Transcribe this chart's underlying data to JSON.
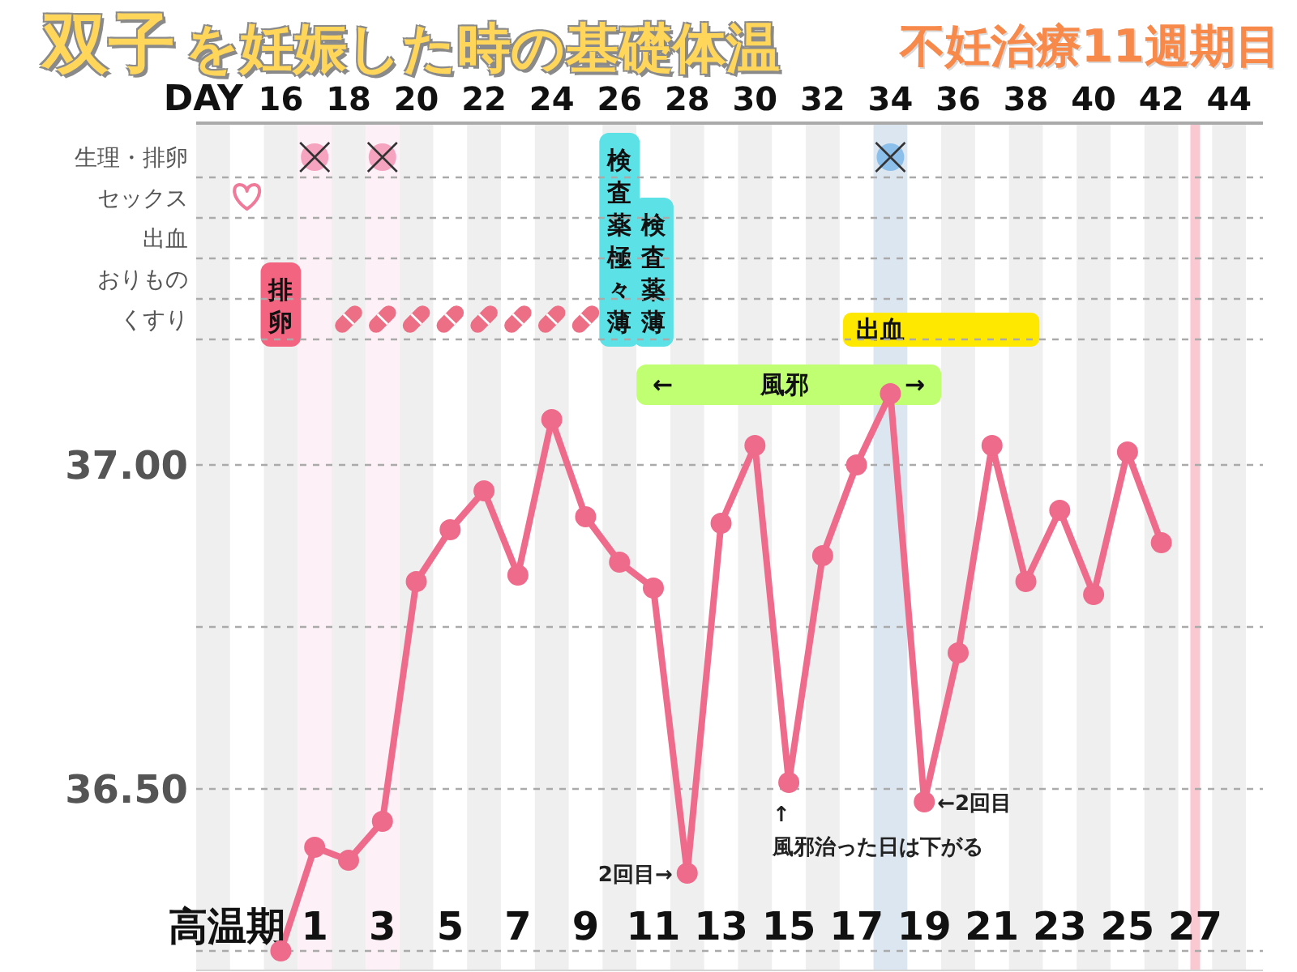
{
  "chart_data": [
    {
      "type": "scatter",
      "orientation": "horizontal",
      "title": "双子を妊娠した時の基礎体温",
      "subtitle": "不妊治療11週期目",
      "xlabel": "DAY",
      "xlim": [
        13.5,
        45
      ],
      "xticks": [
        16,
        18,
        20,
        22,
        24,
        26,
        28,
        30,
        32,
        34,
        36,
        38,
        40,
        42,
        44
      ],
      "categories": [
        "生理・排卵",
        "セックス",
        "出血",
        "おりもの",
        "くすり"
      ],
      "grid": "y",
      "series": [
        {
          "x": [
            "生理・排卵",
            "生理・排卵"
          ],
          "values": [
            17,
            19
          ],
          "color": "#f5a3bf",
          "marker": "circle"
        },
        {
          "x": [
            "生理・排卵"
          ],
          "values": [
            34
          ],
          "color": "#8cbfea",
          "marker": "circle"
        },
        {
          "x": [
            "生理・排卵",
            "生理・排卵",
            "生理・排卵"
          ],
          "values": [
            17,
            19,
            34
          ],
          "color": "#333333",
          "marker": "cross"
        },
        {
          "x": [
            "セックス"
          ],
          "values": [
            15
          ],
          "color": "#f07a9a"
        },
        {
          "x": [
            "くすり",
            "くすり",
            "くすり",
            "くすり",
            "くすり",
            "くすり",
            "くすり",
            "くすり"
          ],
          "values": [
            18,
            19,
            20,
            21,
            22,
            23,
            24,
            25
          ],
          "color": "#ec6f85"
        }
      ],
      "bands": [
        {
          "axis": "x",
          "from": 13.5,
          "to": 14.5,
          "color": "#efefef"
        },
        {
          "axis": "x",
          "from": 15.5,
          "to": 16.5,
          "color": "#efefef"
        },
        {
          "axis": "x",
          "from": 17.5,
          "to": 18.5,
          "color": "#efefef"
        },
        {
          "axis": "x",
          "from": 19.5,
          "to": 20.5,
          "color": "#efefef"
        },
        {
          "axis": "x",
          "from": 21.5,
          "to": 22.5,
          "color": "#efefef"
        },
        {
          "axis": "x",
          "from": 23.5,
          "to": 24.5,
          "color": "#efefef"
        },
        {
          "axis": "x",
          "from": 25.5,
          "to": 26.5,
          "color": "#efefef"
        },
        {
          "axis": "x",
          "from": 27.5,
          "to": 28.5,
          "color": "#efefef"
        },
        {
          "axis": "x",
          "from": 29.5,
          "to": 30.5,
          "color": "#efefef"
        },
        {
          "axis": "x",
          "from": 31.5,
          "to": 32.5,
          "color": "#efefef"
        },
        {
          "axis": "x",
          "from": 35.5,
          "to": 36.5,
          "color": "#efefef"
        },
        {
          "axis": "x",
          "from": 37.5,
          "to": 38.5,
          "color": "#efefef"
        },
        {
          "axis": "x",
          "from": 39.5,
          "to": 40.5,
          "color": "#efefef"
        },
        {
          "axis": "x",
          "from": 41.5,
          "to": 42.5,
          "color": "#efefef"
        },
        {
          "axis": "x",
          "from": 43.5,
          "to": 44.5,
          "color": "#efefef"
        },
        {
          "axis": "x",
          "from": 16.5,
          "to": 17.5,
          "color": "#fdf0f6"
        },
        {
          "axis": "x",
          "from": 18.5,
          "to": 19.5,
          "color": "#fdf0f6"
        },
        {
          "axis": "x",
          "from": 33.5,
          "to": 34.5,
          "color": "#dce6f0"
        },
        {
          "axis": "x",
          "from": 15.5,
          "to": 16.5,
          "label": "排卵",
          "color": "#f2647f"
        },
        {
          "axis": "x",
          "from": 25.5,
          "to": 26.5,
          "label": "検査薬極々薄",
          "color": "#5ce1e6"
        },
        {
          "axis": "x",
          "from": 26.5,
          "to": 27.5,
          "label": "検査薬薄",
          "color": "#5ce1e6"
        },
        {
          "axis": "x",
          "from": 32.6,
          "to": 38.4,
          "label": "出血",
          "color": "#ffe800"
        }
      ],
      "ref_lines": [
        {
          "axis": "x",
          "value": 43,
          "color": "#f9c8d1"
        }
      ]
    },
    {
      "type": "line",
      "xlabel": "高温期",
      "x": [
        0,
        1,
        2,
        3,
        4,
        5,
        6,
        7,
        8,
        9,
        10,
        11,
        12,
        13,
        14,
        15,
        16,
        17,
        18,
        19,
        20,
        21,
        22,
        23,
        24,
        25,
        26
      ],
      "xlim": [
        -2.5,
        29
      ],
      "xticks": [
        1,
        3,
        5,
        7,
        9,
        11,
        13,
        15,
        17,
        19,
        21,
        23,
        25,
        27
      ],
      "ylim": [
        36.22,
        37.18
      ],
      "yticks": [
        {
          "value": 36.25,
          "label": null
        },
        {
          "value": 36.5,
          "label": "36.50"
        },
        {
          "value": 36.75,
          "label": null
        },
        {
          "value": 37,
          "label": "37.00"
        }
      ],
      "grid": "y",
      "marker": "circle",
      "series": [
        {
          "color": "#ee6b8b",
          "values": [
            36.25,
            36.41,
            36.39,
            36.45,
            36.82,
            36.9,
            36.96,
            36.83,
            37.07,
            36.92,
            36.85,
            36.81,
            36.37,
            36.91,
            37.03,
            36.51,
            36.86,
            37.0,
            37.11,
            36.48,
            36.71,
            37.03,
            36.82,
            36.93,
            36.8,
            37.02,
            36.88
          ]
        }
      ],
      "annotations": [
        {
          "text": "2回目→",
          "x": 12,
          "y": 36.37
        },
        {
          "text": "↑\n風邪治った日は下がる",
          "x": 15,
          "y": 36.51
        },
        {
          "text": "←2回目",
          "x": 19,
          "y": 36.48
        }
      ],
      "bands": [
        {
          "axis": "x",
          "from": -2.5,
          "to": -1.5,
          "color": "#efefef"
        },
        {
          "axis": "x",
          "from": -0.5,
          "to": 0.5,
          "color": "#efefef"
        },
        {
          "axis": "x",
          "from": 1.5,
          "to": 2.5,
          "color": "#efefef"
        },
        {
          "axis": "x",
          "from": 3.5,
          "to": 4.5,
          "color": "#efefef"
        },
        {
          "axis": "x",
          "from": 5.5,
          "to": 6.5,
          "color": "#efefef"
        },
        {
          "axis": "x",
          "from": 7.5,
          "to": 8.5,
          "color": "#efefef"
        },
        {
          "axis": "x",
          "from": 9.5,
          "to": 10.5,
          "color": "#efefef"
        },
        {
          "axis": "x",
          "from": 11.5,
          "to": 12.5,
          "color": "#efefef"
        },
        {
          "axis": "x",
          "from": 13.5,
          "to": 14.5,
          "color": "#efefef"
        },
        {
          "axis": "x",
          "from": 15.5,
          "to": 16.5,
          "color": "#efefef"
        },
        {
          "axis": "x",
          "from": 19.5,
          "to": 20.5,
          "color": "#efefef"
        },
        {
          "axis": "x",
          "from": 21.5,
          "to": 22.5,
          "color": "#efefef"
        },
        {
          "axis": "x",
          "from": 23.5,
          "to": 24.5,
          "color": "#efefef"
        },
        {
          "axis": "x",
          "from": 25.5,
          "to": 26.5,
          "color": "#efefef"
        },
        {
          "axis": "x",
          "from": 27.5,
          "to": 28.5,
          "color": "#efefef"
        },
        {
          "axis": "x",
          "from": 0.5,
          "to": 1.5,
          "color": "#fdf0f6"
        },
        {
          "axis": "x",
          "from": 2.5,
          "to": 3.5,
          "color": "#fdf0f6"
        },
        {
          "axis": "x",
          "from": 17.5,
          "to": 18.5,
          "color": "#dce6f0"
        },
        {
          "axis": "x",
          "from": 10.5,
          "to": 19.5,
          "label": "← 風邪 →",
          "color": "#c1ff72"
        }
      ],
      "ref_lines": [
        {
          "axis": "x",
          "value": 27,
          "color": "#f9c8d1"
        }
      ]
    }
  ]
}
